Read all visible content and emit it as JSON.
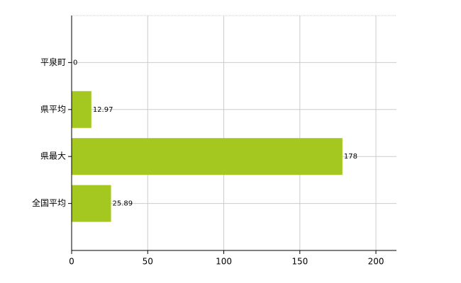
{
  "chart_data": {
    "type": "bar",
    "orientation": "horizontal",
    "categories": [
      "平泉町",
      "県平均",
      "県最大",
      "全国平均"
    ],
    "values": [
      0,
      12.97,
      178,
      25.89
    ],
    "color": "#a5c820",
    "xlim": [
      0,
      213.5
    ],
    "xticks": [
      0,
      50,
      100,
      150,
      200
    ],
    "grid": true
  }
}
